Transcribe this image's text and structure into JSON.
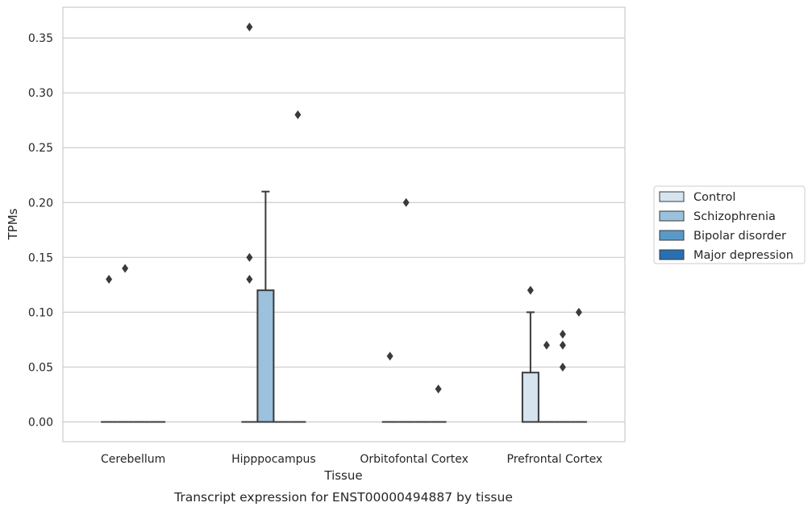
{
  "chart_data": {
    "type": "box",
    "title": "",
    "caption": "Transcript expression for ENST00000494887 by tissue",
    "xlabel": "Tissue",
    "ylabel": "TPMs",
    "ylim": [
      -0.018,
      0.378
    ],
    "yticks": [
      "0.00",
      "0.05",
      "0.10",
      "0.15",
      "0.20",
      "0.25",
      "0.30",
      "0.35"
    ],
    "grid": "horizontal",
    "legend_position": "right",
    "categories": [
      "Cerebellum",
      "Hipppocampus",
      "Orbitofontal Cortex",
      "Prefrontal Cortex"
    ],
    "series": [
      {
        "name": "Control",
        "color": "#d6e4f0",
        "boxes": [
          {
            "q1": 0,
            "median": 0,
            "q3": 0,
            "whisker_low": 0,
            "whisker_high": 0,
            "outliers": [
              0.13
            ]
          },
          {
            "q1": 0,
            "median": 0,
            "q3": 0,
            "whisker_low": 0,
            "whisker_high": 0,
            "outliers": [
              0.36,
              0.15,
              0.13
            ]
          },
          {
            "q1": 0,
            "median": 0,
            "q3": 0,
            "whisker_low": 0,
            "whisker_high": 0,
            "outliers": [
              0.06
            ]
          },
          {
            "q1": 0,
            "median": 0,
            "q3": 0.045,
            "whisker_low": 0,
            "whisker_high": 0.1,
            "outliers": [
              0.12
            ]
          }
        ]
      },
      {
        "name": "Schizophrenia",
        "color": "#9bc1dc",
        "boxes": [
          {
            "q1": 0,
            "median": 0,
            "q3": 0,
            "whisker_low": 0,
            "whisker_high": 0,
            "outliers": [
              0.14
            ]
          },
          {
            "q1": 0,
            "median": 0,
            "q3": 0.12,
            "whisker_low": 0,
            "whisker_high": 0.21,
            "outliers": []
          },
          {
            "q1": 0,
            "median": 0,
            "q3": 0,
            "whisker_low": 0,
            "whisker_high": 0,
            "outliers": [
              0.2
            ]
          },
          {
            "q1": 0,
            "median": 0,
            "q3": 0,
            "whisker_low": 0,
            "whisker_high": 0,
            "outliers": [
              0.07
            ]
          }
        ]
      },
      {
        "name": "Bipolar disorder",
        "color": "#5a9ac9",
        "boxes": [
          {
            "q1": 0,
            "median": 0,
            "q3": 0,
            "whisker_low": 0,
            "whisker_high": 0,
            "outliers": []
          },
          {
            "q1": 0,
            "median": 0,
            "q3": 0,
            "whisker_low": 0,
            "whisker_high": 0,
            "outliers": []
          },
          {
            "q1": 0,
            "median": 0,
            "q3": 0,
            "whisker_low": 0,
            "whisker_high": 0,
            "outliers": []
          },
          {
            "q1": 0,
            "median": 0,
            "q3": 0,
            "whisker_low": 0,
            "whisker_high": 0,
            "outliers": [
              0.08,
              0.07,
              0.05
            ]
          }
        ]
      },
      {
        "name": "Major depression",
        "color": "#2870b1",
        "boxes": [
          {
            "q1": 0,
            "median": 0,
            "q3": 0,
            "whisker_low": 0,
            "whisker_high": 0,
            "outliers": []
          },
          {
            "q1": 0,
            "median": 0,
            "q3": 0,
            "whisker_low": 0,
            "whisker_high": 0,
            "outliers": [
              0.28
            ]
          },
          {
            "q1": 0,
            "median": 0,
            "q3": 0,
            "whisker_low": 0,
            "whisker_high": 0,
            "outliers": [
              0.03
            ]
          },
          {
            "q1": 0,
            "median": 0,
            "q3": 0,
            "whisker_low": 0,
            "whisker_high": 0,
            "outliers": [
              0.1
            ]
          }
        ]
      }
    ]
  }
}
